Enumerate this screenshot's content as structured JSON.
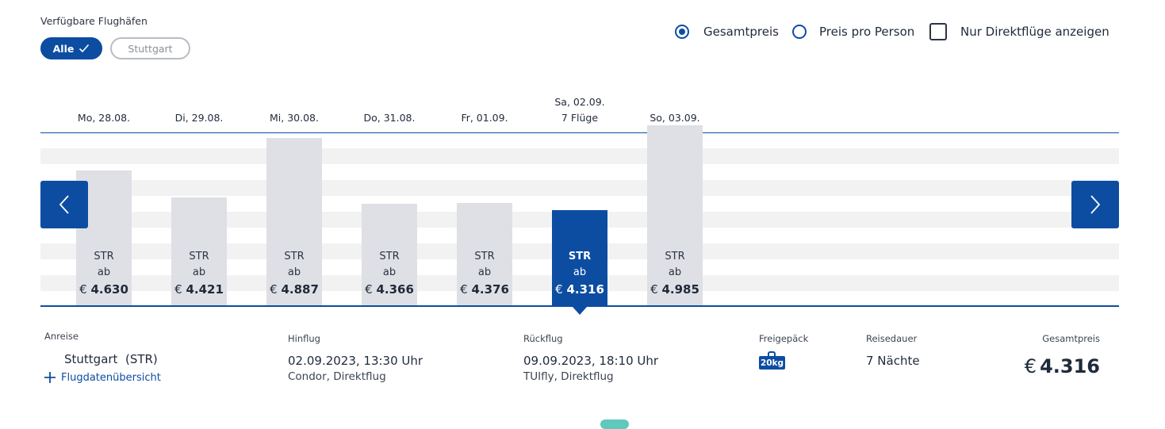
{
  "airports": {
    "label": "Verfügbare Flughäfen",
    "options": [
      {
        "label": "Alle",
        "active": true
      },
      {
        "label": "Stuttgart",
        "active": false
      }
    ]
  },
  "price_mode": {
    "total_label": "Gesamtpreis",
    "per_person_label": "Preis pro Person",
    "selected": "Gesamtpreis"
  },
  "direct_only": {
    "label": "Nur Direktflüge anzeigen",
    "checked": false
  },
  "calendar": {
    "days": [
      {
        "date": "Mo, 28.08.",
        "note": "",
        "airport": "STR",
        "prefix": "ab",
        "currency": "€",
        "price": "4.630",
        "value": 4630,
        "selected": false
      },
      {
        "date": "Di, 29.08.",
        "note": "",
        "airport": "STR",
        "prefix": "ab",
        "currency": "€",
        "price": "4.421",
        "value": 4421,
        "selected": false
      },
      {
        "date": "Mi, 30.08.",
        "note": "",
        "airport": "STR",
        "prefix": "ab",
        "currency": "€",
        "price": "4.887",
        "value": 4887,
        "selected": false
      },
      {
        "date": "Do, 31.08.",
        "note": "",
        "airport": "STR",
        "prefix": "ab",
        "currency": "€",
        "price": "4.366",
        "value": 4366,
        "selected": false
      },
      {
        "date": "Fr, 01.09.",
        "note": "",
        "airport": "STR",
        "prefix": "ab",
        "currency": "€",
        "price": "4.376",
        "value": 4376,
        "selected": false
      },
      {
        "date": "Sa, 02.09.",
        "note": "7 Flüge",
        "airport": "STR",
        "prefix": "ab",
        "currency": "€",
        "price": "4.316",
        "value": 4316,
        "selected": true
      },
      {
        "date": "So, 03.09.",
        "note": "",
        "airport": "STR",
        "prefix": "ab",
        "currency": "€",
        "price": "4.985",
        "value": 4985,
        "selected": false
      }
    ]
  },
  "details": {
    "departure_header": "Anreise",
    "departure_value": "Stuttgart  (STR)",
    "flight_overview_link": "Flugdatenübersicht",
    "outbound_header": "Hinflug",
    "outbound_value": "02.09.2023, 13:30 Uhr",
    "outbound_sub": "Condor, Direktflug",
    "return_header": "Rückflug",
    "return_value": "09.09.2023, 18:10 Uhr",
    "return_sub": "TUIfly, Direktflug",
    "baggage_header": "Freigepäck",
    "baggage_badge": "20kg",
    "duration_header": "Reisedauer",
    "duration_value": "7 Nächte",
    "total_header": "Gesamtpreis",
    "total_currency": "€",
    "total_value": "4.316"
  },
  "colors": {
    "accent": "#0c4da2",
    "bar": "#dfe0e5",
    "stripe": "#f2f2f3"
  }
}
